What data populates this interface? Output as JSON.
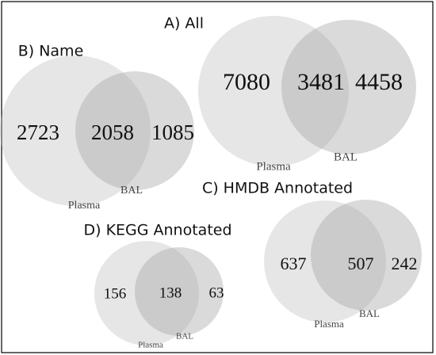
{
  "panels": [
    {
      "title": "A) All",
      "left": 7080,
      "overlap": 3481,
      "right": 4458,
      "left_label": "Plasma",
      "right_label": "BAL"
    },
    {
      "title": "B) Name",
      "left": 2723,
      "overlap": 2058,
      "right": 1085,
      "left_label": "Plasma",
      "right_label": "BAL"
    },
    {
      "title": "C) HMDB Annotated",
      "left": 637,
      "overlap": 507,
      "right": 242,
      "left_label": "Plasma",
      "right_label": "BAL"
    },
    {
      "title": "D) KEGG Annotated",
      "left": 156,
      "overlap": 138,
      "right": 63,
      "left_label": "Plasma",
      "right_label": "BAL"
    }
  ]
}
